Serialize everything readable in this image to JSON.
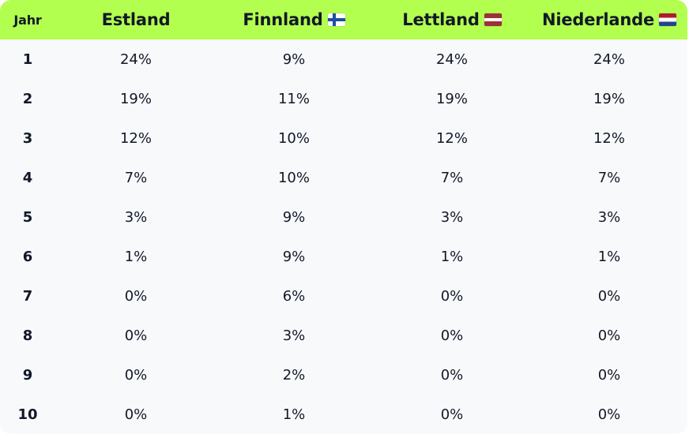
{
  "table": {
    "headers": [
      {
        "label": "Jahr",
        "flag": null
      },
      {
        "label": "Estland",
        "flag": null
      },
      {
        "label": "Finnland",
        "flag": "finland-flag-icon"
      },
      {
        "label": "Lettland",
        "flag": "latvia-flag-icon"
      },
      {
        "label": "Niederlande",
        "flag": "netherlands-flag-icon"
      }
    ],
    "rows": [
      [
        "1",
        "24%",
        "9%",
        "24%",
        "24%"
      ],
      [
        "2",
        "19%",
        "11%",
        "19%",
        "19%"
      ],
      [
        "3",
        "12%",
        "10%",
        "12%",
        "12%"
      ],
      [
        "4",
        "7%",
        "10%",
        "7%",
        "7%"
      ],
      [
        "5",
        "3%",
        "9%",
        "3%",
        "3%"
      ],
      [
        "6",
        "1%",
        "9%",
        "1%",
        "1%"
      ],
      [
        "7",
        "0%",
        "6%",
        "0%",
        "0%"
      ],
      [
        "8",
        "0%",
        "3%",
        "0%",
        "0%"
      ],
      [
        "9",
        "0%",
        "2%",
        "0%",
        "0%"
      ],
      [
        "10",
        "0%",
        "1%",
        "0%",
        "0%"
      ]
    ]
  },
  "colors": {
    "header_bg": "#b3ff4f",
    "body_bg": "#f8f9fb",
    "text": "#111827",
    "finland_blue": "#1f4fa3",
    "latvia_red": "#9e3039",
    "netherlands_red": "#ae1c28",
    "netherlands_blue": "#21468b"
  }
}
